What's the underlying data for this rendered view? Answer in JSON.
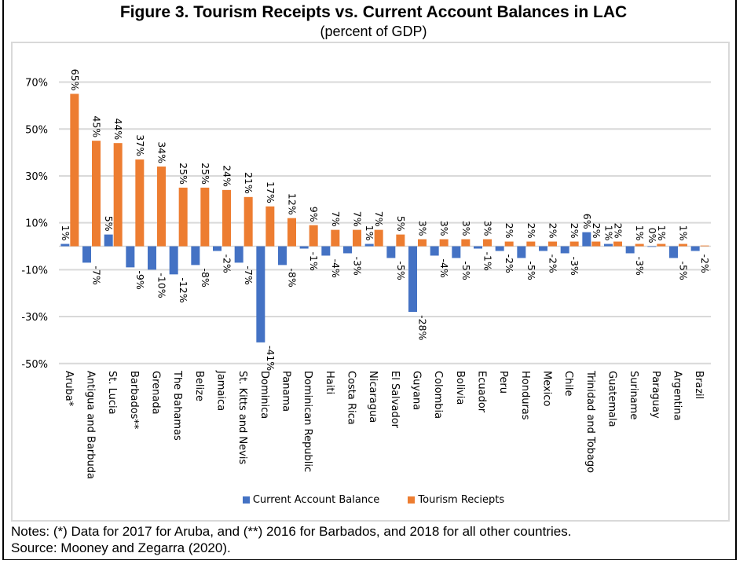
{
  "chart_data": {
    "type": "bar",
    "title": "Figure 3. Tourism Receipts vs. Current Account Balances in LAC",
    "subtitle": "(percent of GDP)",
    "xlabel": "",
    "ylabel": "",
    "ylim": [
      -50,
      70
    ],
    "yticks": [
      70,
      50,
      30,
      10,
      -10,
      -30,
      -50
    ],
    "ytick_labels": [
      "70%",
      "50%",
      "30%",
      "10%",
      "-10%",
      "-30%",
      "-50%"
    ],
    "grid": true,
    "legend_position": "bottom",
    "categories": [
      "Aruba*",
      "Antigua and Barbuda",
      "St. Lucia",
      "Barbados**",
      "Grenada",
      "The Bahamas",
      "Belize",
      "Jamaica",
      "St. Kitts and Nevis",
      "Dominica",
      "Panama",
      "Dominican Republic",
      "Haiti",
      "Costa Rica",
      "Nicaragua",
      "El Salvador",
      "Guyana",
      "Colombia",
      "Bolivia",
      "Ecuador",
      "Peru",
      "Honduras",
      "Mexico",
      "Chile",
      "Trinidad and Tobago",
      "Guatemala",
      "Suriname",
      "Paraguay",
      "Argentina",
      "Brazil"
    ],
    "series": [
      {
        "name": "Current Account Balance",
        "color": "#4472c4",
        "values": [
          1,
          -7,
          5,
          -9,
          -10,
          -12,
          -8,
          -2,
          -7,
          -41,
          -8,
          -1,
          -4,
          -3,
          1,
          -5,
          -28,
          -4,
          -5,
          -1,
          -2,
          -5,
          -2,
          -3,
          6,
          1,
          -3,
          0,
          -5,
          -2
        ],
        "labels": [
          "1%",
          "-7%",
          "5%",
          "-9%",
          "-10%",
          "-12%",
          "-8%",
          "-2%",
          "-7%",
          "-41%",
          "-8%",
          "-1%",
          "-4%",
          "-3%",
          "1%",
          "-5%",
          "-28%",
          "-4%",
          "-5%",
          "-1%",
          "-2%",
          "-5%",
          "-2%",
          "-3%",
          "6%",
          "1%",
          "-3%",
          "0%",
          "-5%",
          "-2%"
        ]
      },
      {
        "name": "Tourism Reciepts",
        "color": "#ed7d31",
        "values": [
          65,
          45,
          44,
          37,
          34,
          25,
          25,
          24,
          21,
          17,
          12,
          9,
          7,
          7,
          7,
          5,
          3,
          3,
          3,
          3,
          2,
          2,
          2,
          2,
          2,
          2,
          1,
          1,
          1,
          0.3
        ],
        "labels": [
          "65%",
          "45%",
          "44%",
          "37%",
          "34%",
          "25%",
          "25%",
          "24%",
          "21%",
          "17%",
          "12%",
          "9%",
          "7%",
          "7%",
          "7%",
          "5%",
          "3%",
          "3%",
          "3%",
          "3%",
          "2%",
          "2%",
          "2%",
          "2%",
          "2%",
          "2%",
          "1%",
          "1%",
          "1%",
          ""
        ]
      }
    ]
  },
  "notes": {
    "line1": "Notes: (*) Data for 2017 for Aruba, and (**) 2016 for Barbados, and 2018 for all other countries.",
    "line2": "Source: Mooney and Zegarra (2020)."
  }
}
